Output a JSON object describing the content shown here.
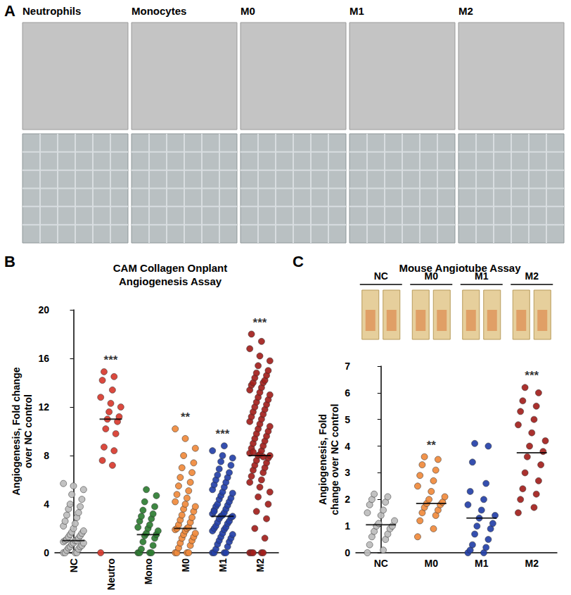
{
  "photo_panel": {
    "label": "A",
    "columns": [
      "Neutrophils",
      "Monocytes",
      "M0",
      "M1",
      "M2"
    ]
  },
  "chart_data": [
    {
      "type": "scatter",
      "annotations": [
        "B"
      ],
      "title": "CAM Collagen Onplant\nAngiogenesis Assay",
      "ylabel": "Angiogenesis, Fold change\nover NC control",
      "categories": [
        "NC",
        "Neutro",
        "Mono",
        "M0",
        "M1",
        "M2"
      ],
      "colors": [
        "#bdbdbd",
        "#d83a2e",
        "#2e7d32",
        "#f08a3c",
        "#2440a8",
        "#a3201c"
      ],
      "values": [
        [
          0,
          0,
          0,
          0,
          0.2,
          0.3,
          0.4,
          0.5,
          0.5,
          0.6,
          0.7,
          0.8,
          0.8,
          0.9,
          1.0,
          1.0,
          1.0,
          1.1,
          1.2,
          1.3,
          1.4,
          1.5,
          1.6,
          1.7,
          1.8,
          2.0,
          2.2,
          2.4,
          2.6,
          2.9,
          3.1,
          3.3,
          3.6,
          3.8,
          4.0,
          4.4,
          4.8,
          5.2,
          5.5,
          5.7
        ],
        [
          0,
          7.2,
          7.6,
          8.4,
          8.7,
          9.8,
          10.2,
          10.8,
          11.0,
          11.2,
          11.6,
          12.0,
          12.3,
          12.8,
          13.4,
          14.2,
          14.5,
          14.9
        ],
        [
          0,
          0,
          0,
          0,
          0.3,
          0.6,
          0.9,
          1.2,
          1.4,
          1.5,
          1.6,
          1.8,
          2.0,
          2.1,
          2.3,
          2.6,
          2.8,
          3.0,
          3.2,
          3.5,
          3.8,
          4.2,
          4.7,
          5.2
        ],
        [
          0,
          0,
          0,
          0,
          0.4,
          0.6,
          0.8,
          1.0,
          1.2,
          1.3,
          1.5,
          1.6,
          1.8,
          1.9,
          2.0,
          2.0,
          2.1,
          2.3,
          2.5,
          2.7,
          2.9,
          3.1,
          3.4,
          3.6,
          3.8,
          4.0,
          4.2,
          4.5,
          4.8,
          5.1,
          5.5,
          5.8,
          6.2,
          6.6,
          7.0,
          7.4,
          8.0,
          8.6,
          9.4,
          10.2
        ],
        [
          0,
          0,
          0,
          0,
          0.3,
          0.5,
          0.7,
          0.9,
          1.0,
          1.2,
          1.3,
          1.5,
          1.6,
          1.8,
          1.9,
          2.0,
          2.1,
          2.2,
          2.4,
          2.5,
          2.6,
          2.8,
          2.9,
          3.0,
          3.0,
          3.1,
          3.2,
          3.3,
          3.5,
          3.6,
          3.8,
          3.9,
          4.0,
          4.2,
          4.4,
          4.5,
          4.7,
          4.9,
          5.0,
          5.2,
          5.4,
          5.6,
          5.8,
          6.0,
          6.2,
          6.4,
          6.6,
          6.9,
          7.2,
          7.5,
          7.8,
          8.0,
          8.4,
          8.8,
          3.4
        ],
        [
          0,
          0,
          0,
          0,
          0,
          1.2,
          2.0,
          2.8,
          3.4,
          4.0,
          4.6,
          5.0,
          5.4,
          5.8,
          6.0,
          6.3,
          6.6,
          6.8,
          7.0,
          7.2,
          7.4,
          7.6,
          7.8,
          8.0,
          8.0,
          8.1,
          8.2,
          8.4,
          8.6,
          8.8,
          9.0,
          9.2,
          9.4,
          9.6,
          9.8,
          10.0,
          10.2,
          10.4,
          10.6,
          10.8,
          11.0,
          11.2,
          11.4,
          11.6,
          11.8,
          12.0,
          12.2,
          12.4,
          12.6,
          12.8,
          13.0,
          13.2,
          13.4,
          13.6,
          13.8,
          14.0,
          14.0,
          14.2,
          14.4,
          14.6,
          14.8,
          15.0,
          15.4,
          15.8,
          16.2,
          16.8,
          17.4,
          18.0,
          7.9,
          8.3
        ]
      ],
      "medians": [
        1.0,
        11.0,
        1.5,
        2.0,
        3.0,
        8.0
      ],
      "significance": [
        null,
        "***",
        null,
        "**",
        "***",
        "***"
      ],
      "ylim": [
        0,
        20
      ],
      "yticks": [
        0,
        4,
        8,
        12,
        16,
        20
      ],
      "grid": false,
      "marker": "circle"
    },
    {
      "type": "scatter",
      "annotations": [
        "C"
      ],
      "title": "Mouse Angiotube Assay",
      "ylabel": "Angiogenesis, Fold\nchange over NC control",
      "categories": [
        "NC",
        "M0",
        "M1",
        "M2"
      ],
      "colors": [
        "#bdbdbd",
        "#f08a3c",
        "#2440a8",
        "#a3201c"
      ],
      "values": [
        [
          0,
          0.1,
          0.3,
          0.5,
          0.6,
          0.7,
          0.8,
          0.9,
          1.0,
          1.0,
          1.1,
          1.2,
          1.4,
          1.5,
          1.6,
          1.8,
          1.9,
          2.0,
          2.1,
          2.2
        ],
        [
          0.6,
          0.9,
          1.2,
          1.4,
          1.5,
          1.6,
          1.7,
          1.8,
          1.85,
          1.9,
          2.0,
          2.1,
          2.3,
          2.5,
          2.7,
          2.9,
          3.1,
          3.3,
          3.5,
          3.6
        ],
        [
          0,
          0,
          0.1,
          0.2,
          0.3,
          0.5,
          0.7,
          0.9,
          1.0,
          1.1,
          1.3,
          1.4,
          1.6,
          1.8,
          2.0,
          2.3,
          2.6,
          3.4,
          4.0,
          4.1
        ],
        [
          1.5,
          1.7,
          2.0,
          2.2,
          2.4,
          2.7,
          3.0,
          3.3,
          3.6,
          3.8,
          4.0,
          4.2,
          4.5,
          4.8,
          5.0,
          5.3,
          5.5,
          5.7,
          6.0,
          6.2
        ]
      ],
      "medians": [
        1.05,
        1.85,
        1.3,
        3.75
      ],
      "significance": [
        null,
        "**",
        null,
        "***"
      ],
      "ylim": [
        0,
        7
      ],
      "yticks": [
        0,
        1,
        2,
        3,
        4,
        5,
        6,
        7
      ],
      "grid": false,
      "marker": "circle"
    }
  ]
}
